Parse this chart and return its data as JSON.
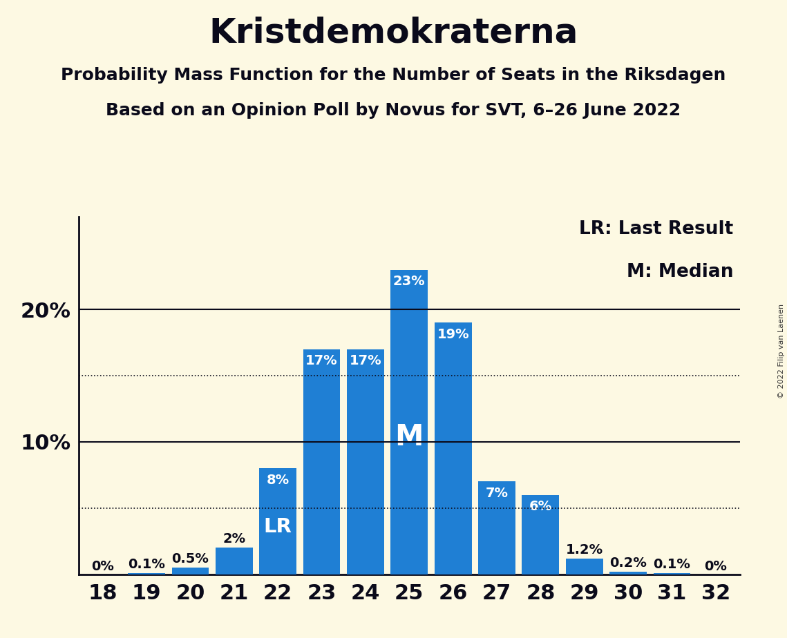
{
  "title": "Kristdemokraterna",
  "subtitle1": "Probability Mass Function for the Number of Seats in the Riksdagen",
  "subtitle2": "Based on an Opinion Poll by Novus for SVT, 6–26 June 2022",
  "copyright": "© 2022 Filip van Laenen",
  "categories": [
    18,
    19,
    20,
    21,
    22,
    23,
    24,
    25,
    26,
    27,
    28,
    29,
    30,
    31,
    32
  ],
  "values": [
    0.0,
    0.1,
    0.5,
    2.0,
    8.0,
    17.0,
    17.0,
    23.0,
    19.0,
    7.0,
    6.0,
    1.2,
    0.2,
    0.1,
    0.0
  ],
  "labels": [
    "0%",
    "0.1%",
    "0.5%",
    "2%",
    "8%",
    "17%",
    "17%",
    "23%",
    "19%",
    "7%",
    "6%",
    "1.2%",
    "0.2%",
    "0.1%",
    "0%"
  ],
  "bar_color": "#1f7fd4",
  "background_color": "#fdf9e3",
  "title_color": "#0a0a1a",
  "lr_seat": 22,
  "median_seat": 25,
  "lr_label": "LR",
  "median_label": "M",
  "legend_lr": "LR: Last Result",
  "legend_m": "M: Median",
  "solid_gridlines": [
    10,
    20
  ],
  "dotted_gridlines": [
    5,
    15
  ],
  "bar_label_fontsize": 14,
  "title_fontsize": 36,
  "subtitle_fontsize": 18,
  "tick_fontsize": 22,
  "ytick_fontsize": 22,
  "legend_fontsize": 19,
  "inner_label_color": "#ffffff",
  "outer_label_color": "#0a0a1a",
  "ylim_max": 27
}
